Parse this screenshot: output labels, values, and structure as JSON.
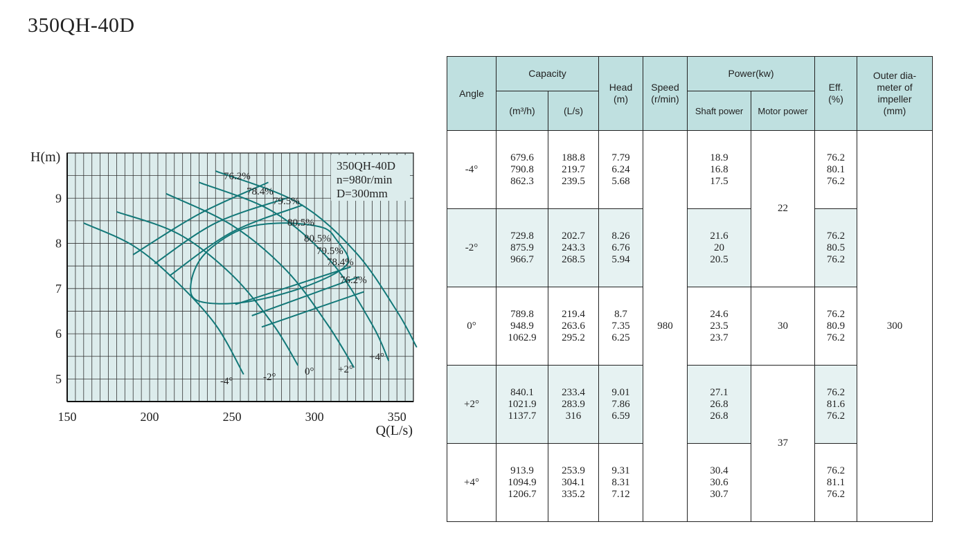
{
  "title": "350QH-40D",
  "chart_data": {
    "type": "line",
    "x_label": "Q(L/s)",
    "y_label": "H(m)",
    "x_ticks": [
      "150",
      "200",
      "250",
      "300",
      "350"
    ],
    "y_ticks": [
      "5",
      "6",
      "7",
      "8",
      "9"
    ],
    "xlim": [
      150,
      360
    ],
    "ylim": [
      4.5,
      10
    ],
    "grid": true,
    "legend": {
      "lines": [
        "350QH-40D",
        "n=980r/min",
        "D=300mm"
      ],
      "placement": "top-right"
    },
    "background": "#dcecec",
    "curve_color": "#127878",
    "angle_curves": [
      {
        "label": "-4°",
        "points": [
          [
            160,
            8.45
          ],
          [
            190,
            7.95
          ],
          [
            215,
            7.2
          ],
          [
            240,
            6.2
          ],
          [
            257,
            5.1
          ]
        ]
      },
      {
        "label": "-2°",
        "points": [
          [
            180,
            8.7
          ],
          [
            218,
            8.2
          ],
          [
            250,
            7.3
          ],
          [
            275,
            6.2
          ],
          [
            290,
            5.3
          ]
        ]
      },
      {
        "label": "0°",
        "points": [
          [
            210,
            9.1
          ],
          [
            250,
            8.4
          ],
          [
            283,
            7.4
          ],
          [
            308,
            6.2
          ],
          [
            324,
            5.25
          ]
        ]
      },
      {
        "label": "+2°",
        "points": [
          [
            230,
            9.35
          ],
          [
            275,
            8.7
          ],
          [
            310,
            7.6
          ],
          [
            335,
            6.2
          ],
          [
            345,
            5.4
          ]
        ]
      },
      {
        "label": "+4°",
        "points": [
          [
            240,
            9.6
          ],
          [
            290,
            8.9
          ],
          [
            325,
            7.8
          ],
          [
            350,
            6.5
          ],
          [
            362,
            5.7
          ]
        ]
      }
    ],
    "efficiency_curves": [
      {
        "label": "76.2%",
        "points": [
          [
            190,
            7.75
          ],
          [
            230,
            8.65
          ],
          [
            272,
            9.35
          ]
        ]
      },
      {
        "label": "78.4%",
        "points": [
          [
            203,
            7.55
          ],
          [
            240,
            8.45
          ],
          [
            283,
            9.0
          ]
        ]
      },
      {
        "label": "79.5%",
        "points": [
          [
            212,
            7.28
          ],
          [
            250,
            8.25
          ],
          [
            293,
            8.85
          ]
        ]
      },
      {
        "label": "76.2%",
        "points": [
          [
            268,
            6.15
          ],
          [
            330,
            6.93
          ]
        ]
      },
      {
        "label": "78.4%",
        "points": [
          [
            262,
            6.4
          ],
          [
            327,
            7.26
          ]
        ]
      },
      {
        "label": "79.5%",
        "points": [
          [
            252,
            6.65
          ],
          [
            322,
            7.48
          ]
        ]
      }
    ],
    "eff_loop_80_5": {
      "label": "80.5%",
      "points": [
        [
          313,
          8.1
        ],
        [
          305,
          8.35
        ],
        [
          280,
          8.45
        ],
        [
          255,
          8.3
        ],
        [
          233,
          7.75
        ],
        [
          225,
          7.1
        ],
        [
          230,
          6.72
        ],
        [
          258,
          6.7
        ],
        [
          295,
          7.05
        ],
        [
          320,
          7.55
        ],
        [
          313,
          8.1
        ]
      ]
    },
    "efficiency_labels": [
      "76.2%",
      "78.4%",
      "79.5%",
      "80.5%",
      "80.5%",
      "79.5%",
      "78.4%",
      "76.2%"
    ]
  },
  "table": {
    "headers": {
      "angle": "Angle",
      "capacity": "Capacity",
      "cap_m3h": "(m³/h)",
      "cap_ls": "(L/s)",
      "head": "Head\n(m)",
      "speed": "Speed\n(r/min)",
      "power": "Power(kw)",
      "shaft": "Shaft power",
      "motor": "Motor power",
      "eff": "Eff.\n(%)",
      "outer": "Outer dia-\nmeter of\nimpeller\n(mm)"
    },
    "speed": "980",
    "outer_dia": "300",
    "motor_groups": [
      "22",
      "30",
      "37"
    ],
    "rows": [
      {
        "angle": "-4°",
        "m3h": "679.6\n790.8\n862.3",
        "ls": "188.8\n219.7\n239.5",
        "head": "7.79\n6.24\n5.68",
        "shaft": "18.9\n16.8\n17.5",
        "eff": "76.2\n80.1\n76.2"
      },
      {
        "angle": "-2°",
        "m3h": "729.8\n875.9\n966.7",
        "ls": "202.7\n243.3\n268.5",
        "head": "8.26\n6.76\n5.94",
        "shaft": "21.6\n20\n20.5",
        "eff": "76.2\n80.5\n76.2"
      },
      {
        "angle": "0°",
        "m3h": "789.8\n948.9\n1062.9",
        "ls": "219.4\n263.6\n295.2",
        "head": "8.7\n7.35\n6.25",
        "shaft": "24.6\n23.5\n23.7",
        "eff": "76.2\n80.9\n76.2"
      },
      {
        "angle": "+2°",
        "m3h": "840.1\n1021.9\n1137.7",
        "ls": "233.4\n283.9\n316",
        "head": "9.01\n7.86\n6.59",
        "shaft": "27.1\n26.8\n26.8",
        "eff": "76.2\n81.6\n76.2"
      },
      {
        "angle": "+4°",
        "m3h": "913.9\n1094.9\n1206.7",
        "ls": "253.9\n304.1\n335.2",
        "head": "9.31\n8.31\n7.12",
        "shaft": "30.4\n30.6\n30.7",
        "eff": "76.2\n81.1\n76.2"
      }
    ]
  }
}
